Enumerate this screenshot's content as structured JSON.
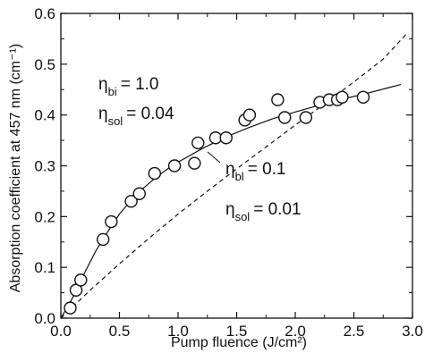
{
  "chart_data": {
    "type": "scatter",
    "xlabel": "Pump fluence (J/cm²)",
    "ylabel": "Absorption coefficient at 457 nm (cm⁻¹)",
    "xlim": [
      0.0,
      3.0
    ],
    "ylim": [
      0.0,
      0.6
    ],
    "x_ticks": [
      "0.0",
      "0.5",
      "1.0",
      "1.5",
      "2.0",
      "2.5",
      "3.0"
    ],
    "y_ticks": [
      "0.0",
      "0.1",
      "0.2",
      "0.3",
      "0.4",
      "0.5",
      "0.6"
    ],
    "grid": false,
    "series": [
      {
        "style": "markers",
        "marker": "open-circle",
        "x": [
          0.08,
          0.13,
          0.17,
          0.36,
          0.43,
          0.6,
          0.67,
          0.8,
          0.97,
          1.14,
          1.17,
          1.32,
          1.41,
          1.57,
          1.61,
          1.85,
          1.91,
          2.09,
          2.21,
          2.29,
          2.36,
          2.4,
          2.58
        ],
        "y": [
          0.02,
          0.055,
          0.075,
          0.155,
          0.19,
          0.23,
          0.245,
          0.285,
          0.3,
          0.305,
          0.345,
          0.355,
          0.355,
          0.39,
          0.4,
          0.43,
          0.395,
          0.395,
          0.425,
          0.43,
          0.43,
          0.435,
          0.435
        ]
      },
      {
        "style": "solid-line",
        "x": [
          0.0,
          0.1,
          0.2,
          0.3,
          0.4,
          0.5,
          0.6,
          0.7,
          0.8,
          0.9,
          1.0,
          1.2,
          1.4,
          1.6,
          1.8,
          2.0,
          2.2,
          2.4,
          2.6,
          2.8,
          2.9
        ],
        "y": [
          0.0,
          0.04,
          0.088,
          0.133,
          0.17,
          0.205,
          0.232,
          0.255,
          0.275,
          0.292,
          0.307,
          0.333,
          0.356,
          0.375,
          0.392,
          0.406,
          0.419,
          0.431,
          0.442,
          0.454,
          0.46
        ]
      },
      {
        "style": "dashed-line",
        "x": [
          0.0,
          0.25,
          0.5,
          0.75,
          1.0,
          1.25,
          1.5,
          1.75,
          2.0,
          2.25,
          2.5,
          2.75,
          2.95
        ],
        "y": [
          0.0,
          0.055,
          0.107,
          0.157,
          0.205,
          0.25,
          0.294,
          0.337,
          0.38,
          0.422,
          0.465,
          0.51,
          0.56
        ]
      }
    ],
    "annotations": [
      {
        "symbol": "η",
        "subscript": "bi",
        "value": "= 1.0"
      },
      {
        "symbol": "η",
        "subscript": "sol",
        "value": "= 0.04"
      },
      {
        "symbol": "η",
        "subscript": "bl",
        "value": "= 0.1"
      },
      {
        "symbol": "η",
        "subscript": "sol",
        "value": "= 0.01"
      }
    ]
  }
}
